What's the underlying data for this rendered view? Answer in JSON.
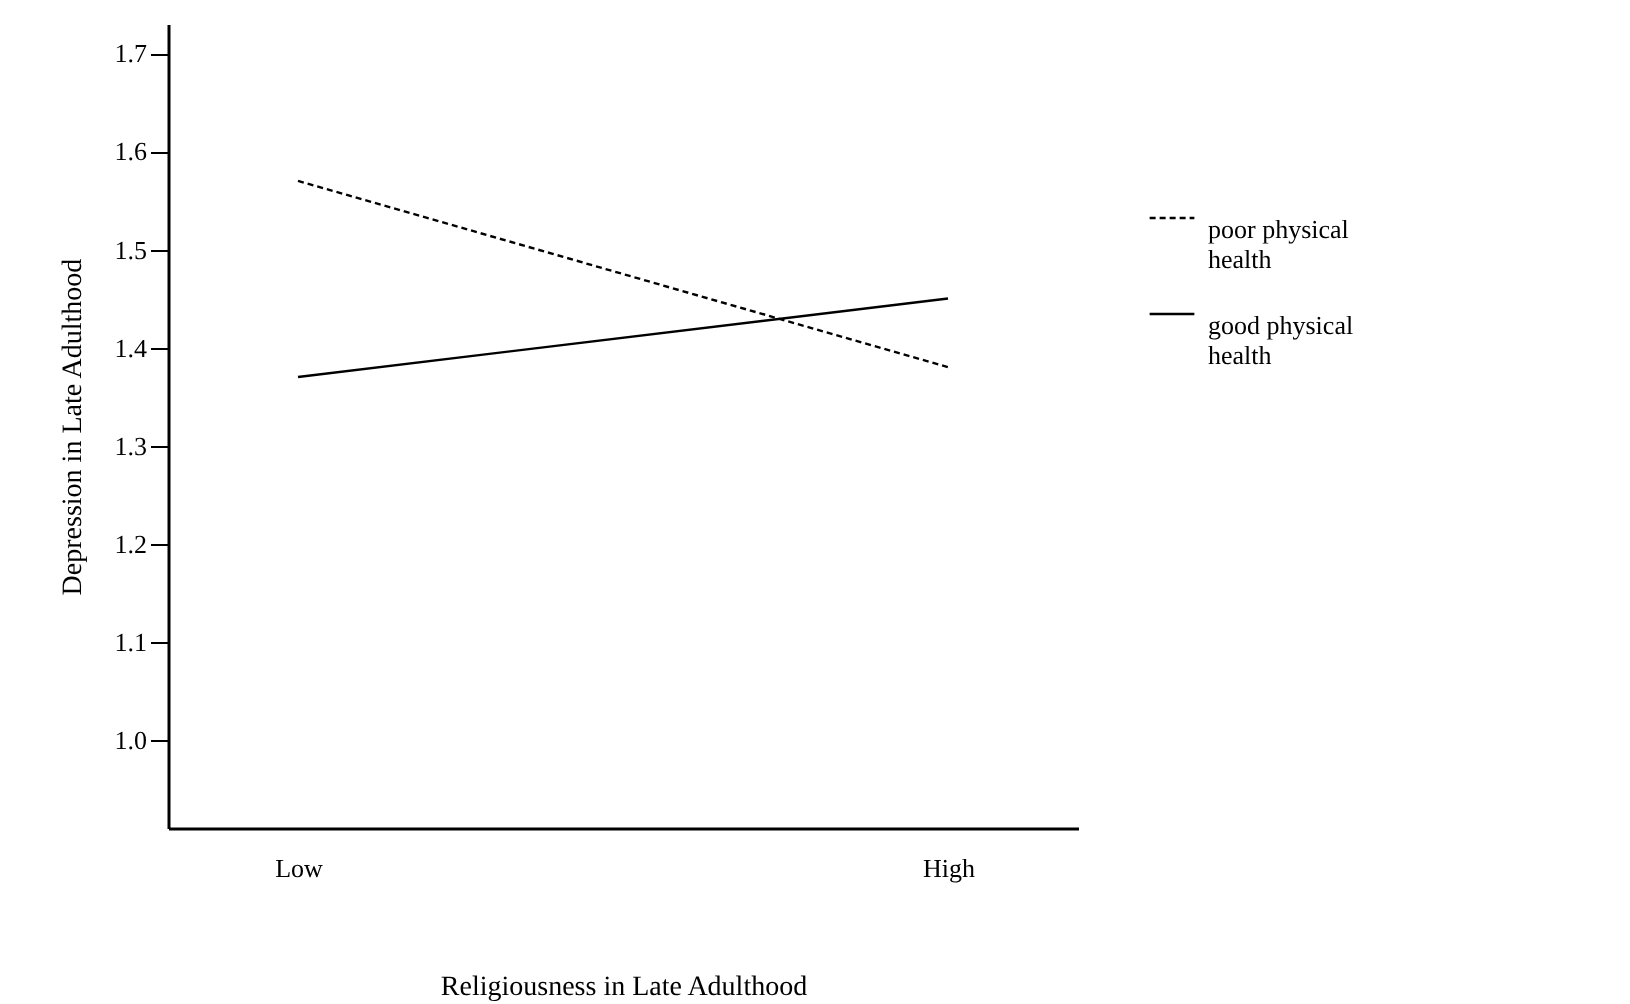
{
  "chart_data": {
    "type": "line",
    "xlabel": "Religiousness in Late Adulthood",
    "ylabel": "Depression in Late Adulthood",
    "categories": [
      "Low",
      "High"
    ],
    "series": [
      {
        "name": "poor physical health",
        "color": "#000000",
        "line_style": "dashed",
        "values": [
          1.57,
          1.38
        ]
      },
      {
        "name": "good physical health",
        "color": "#000000",
        "line_style": "solid",
        "values": [
          1.37,
          1.45
        ]
      }
    ],
    "ylim": [
      0.91,
      1.73
    ],
    "yticks": [
      {
        "value": 1,
        "label": "1.0"
      },
      1.1,
      1.2,
      1.3,
      1.4,
      1.5,
      1.6,
      1.7
    ],
    "grid": false,
    "legend": "right",
    "marker": "none"
  }
}
